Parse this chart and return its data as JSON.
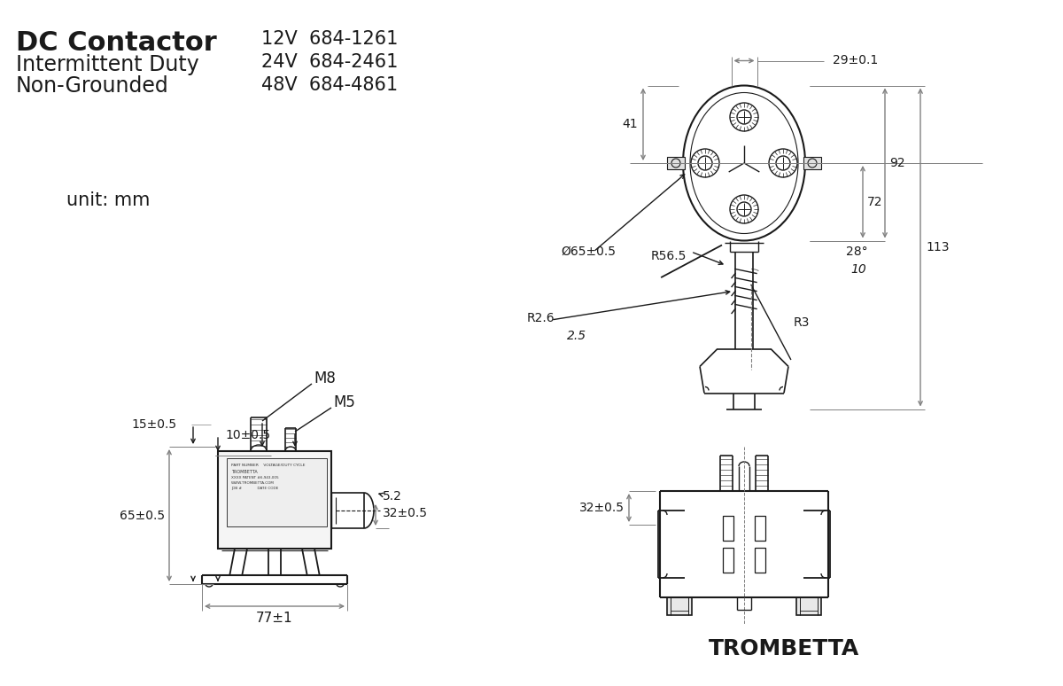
{
  "bg_color": "#ffffff",
  "line_color": "#1a1a1a",
  "dim_color": "#808080",
  "title_line1": "DC Contactor",
  "title_line2": "Intermittent Duty",
  "title_line3": "Non-Grounded",
  "part_numbers": [
    "12V  684-1261",
    "24V  684-2461",
    "48V  684-4861"
  ],
  "unit_text": "unit: mm",
  "trombetta_text": "TROMBETTA",
  "dim_labels": {
    "width_29": "29±0.1",
    "dim_41": "41",
    "dia_65": "Ø65±0.5",
    "dim_113": "113",
    "dim_92": "92",
    "dim_72": "72",
    "r56_5": "R56.5",
    "r2_6": "R2.6",
    "angle_28": "28°",
    "dim_10": "10",
    "dim_2_5": "2.5",
    "r3": "R3",
    "dim_15": "15±0.5",
    "dim_10b": "10±0.5",
    "dim_65b": "65±0.5",
    "dim_5_2": "5.2",
    "dim_32": "32±0.5",
    "dim_77": "77±1",
    "m8": "M8",
    "m5": "M5",
    "dim_32b": "32±0.5"
  }
}
